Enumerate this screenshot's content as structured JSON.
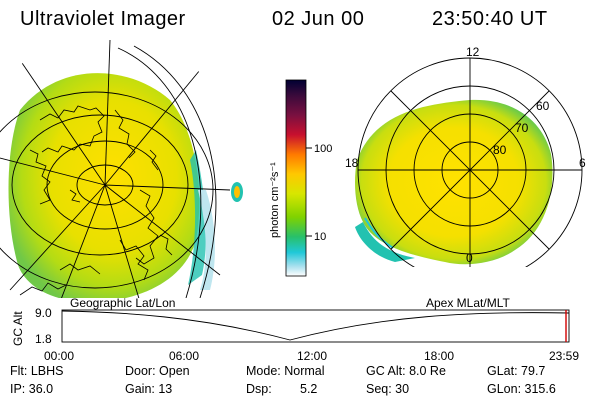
{
  "header": {
    "instrument": "Ultraviolet Imager",
    "date": "02 Jun 00",
    "time": "23:50:40 UT"
  },
  "colorbar": {
    "label": "photon cm⁻²s⁻¹",
    "ticks": [
      "100",
      "10"
    ],
    "colors": [
      "#000033",
      "#3b0a3b",
      "#7a1040",
      "#c8102e",
      "#ff7a00",
      "#ffc800",
      "#d8e600",
      "#7fd200",
      "#28c06a",
      "#20c8d8",
      "#a8e0ee",
      "#ffffff"
    ]
  },
  "left_map": {
    "caption": "Geographic Lat/Lon"
  },
  "right_map": {
    "caption": "Apex MLat/MLT",
    "mlt_labels": {
      "top": "12",
      "left": "18",
      "right": "6",
      "bottom": "0"
    },
    "lat_labels": [
      "60",
      "70",
      "80"
    ]
  },
  "timeline": {
    "ylabel": "GC Alt",
    "ymax": "9.0",
    "ymin": "1.8",
    "ticks": [
      "00:00",
      "06:00",
      "12:00",
      "18:00",
      "23:59"
    ]
  },
  "info": {
    "flt": "Flt: LBHS",
    "door": "Door: Open",
    "mode": "Mode: Normal",
    "gcalt": "GC Alt: 8.0 Re",
    "glat": "GLat: 79.7",
    "ip": "IP: 36.0",
    "gain": "Gain: 13",
    "dsp_label": "Dsp:",
    "dsp_value": "5.2",
    "seq": "Seq: 30",
    "glon": "GLon: 315.6"
  }
}
